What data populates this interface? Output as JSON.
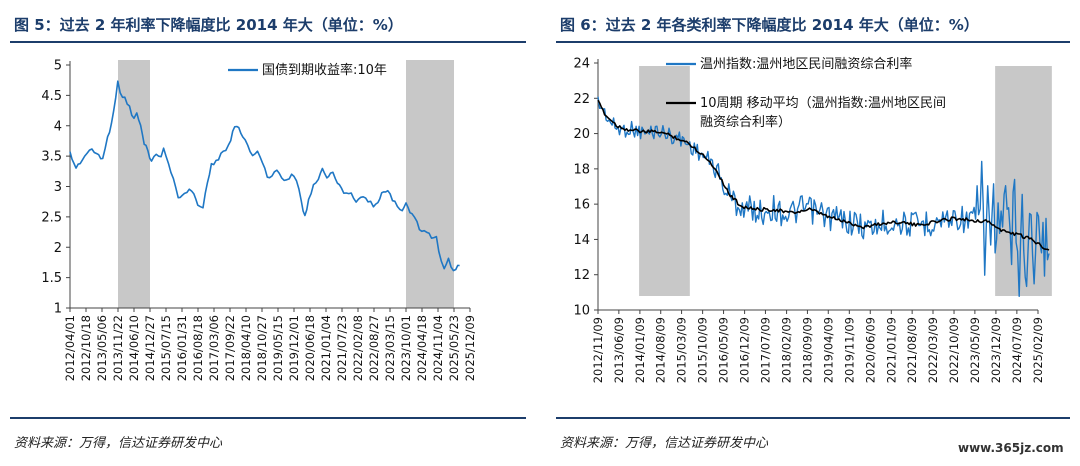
{
  "left": {
    "title": "图 5：过去 2 年利率下降幅度比 2014 年大（单位：%）",
    "source": "资料来源：万得，信达证券研发中心"
  },
  "right": {
    "title": "图 6：过去 2 年各类利率下降幅度比 2014 年大（单位：%）",
    "source": "资料来源：万得，信达证券研发中心"
  },
  "watermark": "www.365jz.com",
  "colors": {
    "series_blue": "#1f77c4",
    "series_black": "#000000",
    "shade": "#c8c8c8",
    "title_navy": "#1c3d6b"
  },
  "chart_data": [
    {
      "type": "line",
      "ylim": [
        1,
        5
      ],
      "yticks": [
        1,
        1.5,
        2,
        2.5,
        3,
        3.5,
        4,
        4.5,
        5
      ],
      "xticks": [
        "2012/04/01",
        "2012/10/18",
        "2013/05/06",
        "2013/11/22",
        "2014/06/10",
        "2014/12/27",
        "2015/07/15",
        "2016/01/31",
        "2016/08/18",
        "2017/03/06",
        "2017/09/22",
        "2018/04/10",
        "2018/10/27",
        "2019/05/15",
        "2019/12/01",
        "2020/06/18",
        "2021/01/04",
        "2021/07/23",
        "2022/02/08",
        "2022/08/27",
        "2023/03/15",
        "2023/10/01",
        "2024/04/18",
        "2024/11/04",
        "2025/05/23",
        "2025/12/09"
      ],
      "shaded_ranges": [
        [
          "2013/11/22",
          "2014/12/27"
        ],
        [
          "2023/10/01",
          "2025/05/23"
        ]
      ],
      "legend_position": "top-right",
      "series": [
        {
          "name": "国债到期收益率:10年",
          "color": "#1f77c4",
          "points": [
            [
              "2012/04/01",
              3.55
            ],
            [
              "2012/06/15",
              3.3
            ],
            [
              "2012/09/01",
              3.45
            ],
            [
              "2012/12/01",
              3.6
            ],
            [
              "2013/03/01",
              3.55
            ],
            [
              "2013/05/15",
              3.45
            ],
            [
              "2013/07/15",
              3.8
            ],
            [
              "2013/09/01",
              4.05
            ],
            [
              "2013/11/20",
              4.7
            ],
            [
              "2013/12/20",
              4.55
            ],
            [
              "2014/02/15",
              4.45
            ],
            [
              "2014/04/15",
              4.3
            ],
            [
              "2014/06/10",
              4.1
            ],
            [
              "2014/07/15",
              4.2
            ],
            [
              "2014/09/01",
              4.0
            ],
            [
              "2014/10/15",
              3.7
            ],
            [
              "2014/12/01",
              3.6
            ],
            [
              "2015/01/15",
              3.4
            ],
            [
              "2015/03/15",
              3.55
            ],
            [
              "2015/05/15",
              3.5
            ],
            [
              "2015/06/15",
              3.6
            ],
            [
              "2015/08/15",
              3.4
            ],
            [
              "2015/10/15",
              3.1
            ],
            [
              "2015/12/15",
              2.85
            ],
            [
              "2016/02/01",
              2.85
            ],
            [
              "2016/04/01",
              2.9
            ],
            [
              "2016/06/01",
              2.95
            ],
            [
              "2016/08/15",
              2.7
            ],
            [
              "2016/10/20",
              2.65
            ],
            [
              "2016/12/15",
              3.1
            ],
            [
              "2017/02/01",
              3.35
            ],
            [
              "2017/04/01",
              3.4
            ],
            [
              "2017/06/01",
              3.55
            ],
            [
              "2017/08/01",
              3.6
            ],
            [
              "2017/10/01",
              3.75
            ],
            [
              "2017/11/20",
              4.0
            ],
            [
              "2018/01/10",
              3.95
            ],
            [
              "2018/03/01",
              3.85
            ],
            [
              "2018/05/01",
              3.65
            ],
            [
              "2018/07/01",
              3.5
            ],
            [
              "2018/09/01",
              3.6
            ],
            [
              "2018/11/01",
              3.4
            ],
            [
              "2019/01/01",
              3.15
            ],
            [
              "2019/03/01",
              3.15
            ],
            [
              "2019/05/01",
              3.3
            ],
            [
              "2019/07/01",
              3.15
            ],
            [
              "2019/09/01",
              3.1
            ],
            [
              "2019/11/01",
              3.2
            ],
            [
              "2020/01/01",
              3.1
            ],
            [
              "2020/03/01",
              2.75
            ],
            [
              "2020/04/15",
              2.5
            ],
            [
              "2020/06/01",
              2.8
            ],
            [
              "2020/08/01",
              3.0
            ],
            [
              "2020/10/01",
              3.15
            ],
            [
              "2020/11/20",
              3.3
            ],
            [
              "2021/01/15",
              3.15
            ],
            [
              "2021/03/01",
              3.25
            ],
            [
              "2021/05/01",
              3.15
            ],
            [
              "2021/07/15",
              2.95
            ],
            [
              "2021/09/15",
              2.9
            ],
            [
              "2021/11/15",
              2.9
            ],
            [
              "2022/01/15",
              2.75
            ],
            [
              "2022/03/15",
              2.8
            ],
            [
              "2022/05/15",
              2.8
            ],
            [
              "2022/07/15",
              2.75
            ],
            [
              "2022/08/20",
              2.65
            ],
            [
              "2022/10/15",
              2.7
            ],
            [
              "2022/12/01",
              2.9
            ],
            [
              "2023/02/15",
              2.9
            ],
            [
              "2023/04/15",
              2.8
            ],
            [
              "2023/06/15",
              2.65
            ],
            [
              "2023/08/15",
              2.6
            ],
            [
              "2023/10/01",
              2.7
            ],
            [
              "2023/12/15",
              2.55
            ],
            [
              "2024/02/15",
              2.4
            ],
            [
              "2024/04/15",
              2.25
            ],
            [
              "2024/06/15",
              2.25
            ],
            [
              "2024/08/15",
              2.15
            ],
            [
              "2024/10/15",
              2.15
            ],
            [
              "2024/12/15",
              1.75
            ],
            [
              "2025/01/20",
              1.65
            ],
            [
              "2025/03/15",
              1.85
            ],
            [
              "2025/04/15",
              1.65
            ],
            [
              "2025/06/15",
              1.65
            ],
            [
              "2025/08/01",
              1.7
            ]
          ]
        }
      ]
    },
    {
      "type": "line",
      "ylim": [
        10,
        24
      ],
      "yticks": [
        10,
        12,
        14,
        16,
        18,
        20,
        22,
        24
      ],
      "xticks": [
        "2012/11/09",
        "2013/06/09",
        "2014/01/09",
        "2014/08/09",
        "2015/03/09",
        "2015/10/09",
        "2016/05/09",
        "2016/12/09",
        "2017/07/09",
        "2018/02/09",
        "2018/09/09",
        "2019/04/09",
        "2019/11/09",
        "2020/06/09",
        "2021/01/09",
        "2021/08/09",
        "2022/03/09",
        "2022/10/09",
        "2023/05/09",
        "2023/12/09",
        "2024/07/09",
        "2025/02/09"
      ],
      "shaded_ranges": [
        [
          "2014/01/01",
          "2015/06/01"
        ],
        [
          "2023/12/01",
          "2025/06/30"
        ]
      ],
      "legend_position": "top-left",
      "series": [
        {
          "name": "温州指数:温州地区民间融资综合利率",
          "color": "#1f77c4",
          "points": [
            [
              "2012/11/09",
              21.8
            ],
            [
              "2013/01/15",
              21.2
            ],
            [
              "2013/04/01",
              20.5
            ],
            [
              "2013/07/01",
              20.2
            ],
            [
              "2013/10/01",
              20.3
            ],
            [
              "2014/01/01",
              20.1
            ],
            [
              "2014/04/01",
              20.0
            ],
            [
              "2014/07/01",
              20.2
            ],
            [
              "2014/10/01",
              20.0
            ],
            [
              "2015/01/01",
              19.8
            ],
            [
              "2015/04/01",
              19.6
            ],
            [
              "2015/07/01",
              19.2
            ],
            [
              "2015/10/01",
              18.8
            ],
            [
              "2016/01/01",
              18.4
            ],
            [
              "2016/03/01",
              17.8
            ],
            [
              "2016/06/01",
              16.8
            ],
            [
              "2016/09/01",
              16.1
            ],
            [
              "2016/12/01",
              15.8
            ],
            [
              "2017/03/01",
              15.7
            ],
            [
              "2017/06/01",
              15.5
            ],
            [
              "2017/09/01",
              15.8
            ],
            [
              "2017/12/01",
              15.6
            ],
            [
              "2018/03/01",
              15.4
            ],
            [
              "2018/06/01",
              15.6
            ],
            [
              "2018/09/01",
              15.8
            ],
            [
              "2018/12/01",
              15.5
            ],
            [
              "2019/03/01",
              15.4
            ],
            [
              "2019/06/01",
              15.2
            ],
            [
              "2019/09/01",
              15.1
            ],
            [
              "2019/12/01",
              15.0
            ],
            [
              "2020/03/01",
              14.8
            ],
            [
              "2020/06/01",
              14.6
            ],
            [
              "2020/09/01",
              14.8
            ],
            [
              "2020/12/01",
              15.0
            ],
            [
              "2021/03/01",
              15.0
            ],
            [
              "2021/06/01",
              14.9
            ],
            [
              "2021/09/01",
              14.8
            ],
            [
              "2021/12/01",
              14.9
            ],
            [
              "2022/03/01",
              15.0
            ],
            [
              "2022/06/01",
              15.1
            ],
            [
              "2022/09/01",
              15.2
            ],
            [
              "2022/12/01",
              15.3
            ],
            [
              "2023/03/01",
              15.0
            ],
            [
              "2023/06/01",
              15.2
            ],
            [
              "2023/09/01",
              15.1
            ],
            [
              "2023/12/01",
              14.8
            ],
            [
              "2024/03/01",
              14.2
            ],
            [
              "2024/06/01",
              14.5
            ],
            [
              "2024/09/01",
              13.8
            ],
            [
              "2024/12/01",
              14.2
            ],
            [
              "2025/03/01",
              13.5
            ],
            [
              "2025/06/01",
              13.2
            ]
          ]
        },
        {
          "name": "10周期 移动平均（温州指数:温州地区民间融资综合利率）",
          "color": "#000000",
          "points": [
            [
              "2012/11/09",
              21.8
            ],
            [
              "2013/02/01",
              21.0
            ],
            [
              "2013/06/01",
              20.4
            ],
            [
              "2013/10/01",
              20.2
            ],
            [
              "2014/03/01",
              20.1
            ],
            [
              "2014/08/01",
              20.1
            ],
            [
              "2015/01/01",
              19.8
            ],
            [
              "2015/06/01",
              19.4
            ],
            [
              "2015/11/01",
              18.7
            ],
            [
              "2016/03/01",
              17.9
            ],
            [
              "2016/07/01",
              16.6
            ],
            [
              "2016/11/01",
              15.9
            ],
            [
              "2017/04/01",
              15.7
            ],
            [
              "2017/10/01",
              15.7
            ],
            [
              "2018/04/01",
              15.5
            ],
            [
              "2018/10/01",
              15.7
            ],
            [
              "2019/04/01",
              15.3
            ],
            [
              "2019/10/01",
              15.0
            ],
            [
              "2020/04/01",
              14.7
            ],
            [
              "2020/10/01",
              14.9
            ],
            [
              "2021/04/01",
              15.0
            ],
            [
              "2021/10/01",
              14.8
            ],
            [
              "2022/04/01",
              15.0
            ],
            [
              "2022/10/01",
              15.2
            ],
            [
              "2023/04/01",
              15.1
            ],
            [
              "2023/10/01",
              15.0
            ],
            [
              "2024/02/01",
              14.5
            ],
            [
              "2024/07/01",
              14.3
            ],
            [
              "2024/12/01",
              14.0
            ],
            [
              "2025/06/01",
              13.4
            ]
          ]
        }
      ]
    }
  ]
}
